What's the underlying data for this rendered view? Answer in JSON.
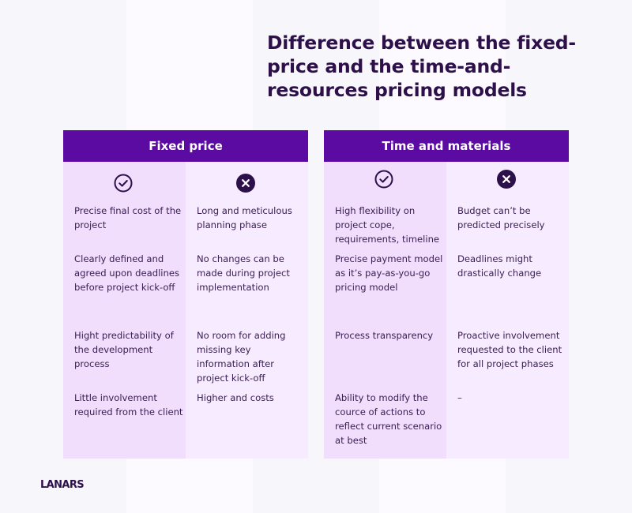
{
  "title": "Difference between the fixed-price and the time-and-resources pricing models",
  "colors": {
    "header": "#5b0aa2",
    "pro_bg": "#f0defc",
    "con_bg": "#f7ebff",
    "text": "#3a1d52",
    "icon": "#2d0f4a"
  },
  "icons": {
    "pro": "check-circle-icon",
    "con": "x-circle-filled-icon"
  },
  "tables": [
    {
      "header": "Fixed price",
      "pros": [
        "Precise final cost of the project",
        "Clearly defined and agreed upon deadlines before project kick-off",
        "Hight predictability of the development process",
        "Little involvement required from the client"
      ],
      "cons": [
        "Long and meticulous planning phase",
        "No changes can be made during project implementation",
        "No room for adding missing key information after project kick-off",
        "Higher and costs"
      ]
    },
    {
      "header": "Time and materials",
      "pros": [
        "High flexibility on project cope, requirements, timeline",
        "Precise payment model as it’s  pay-as-you-go pricing model",
        "Process transparency",
        "Ability to modify the cource of actions to reflect current scenario at best"
      ],
      "cons": [
        "Budget can’t be predicted precisely",
        "Deadlines might drastically change",
        "Proactive involvement requested to the client for all project phases",
        "–"
      ]
    }
  ],
  "logo": "LANARS"
}
